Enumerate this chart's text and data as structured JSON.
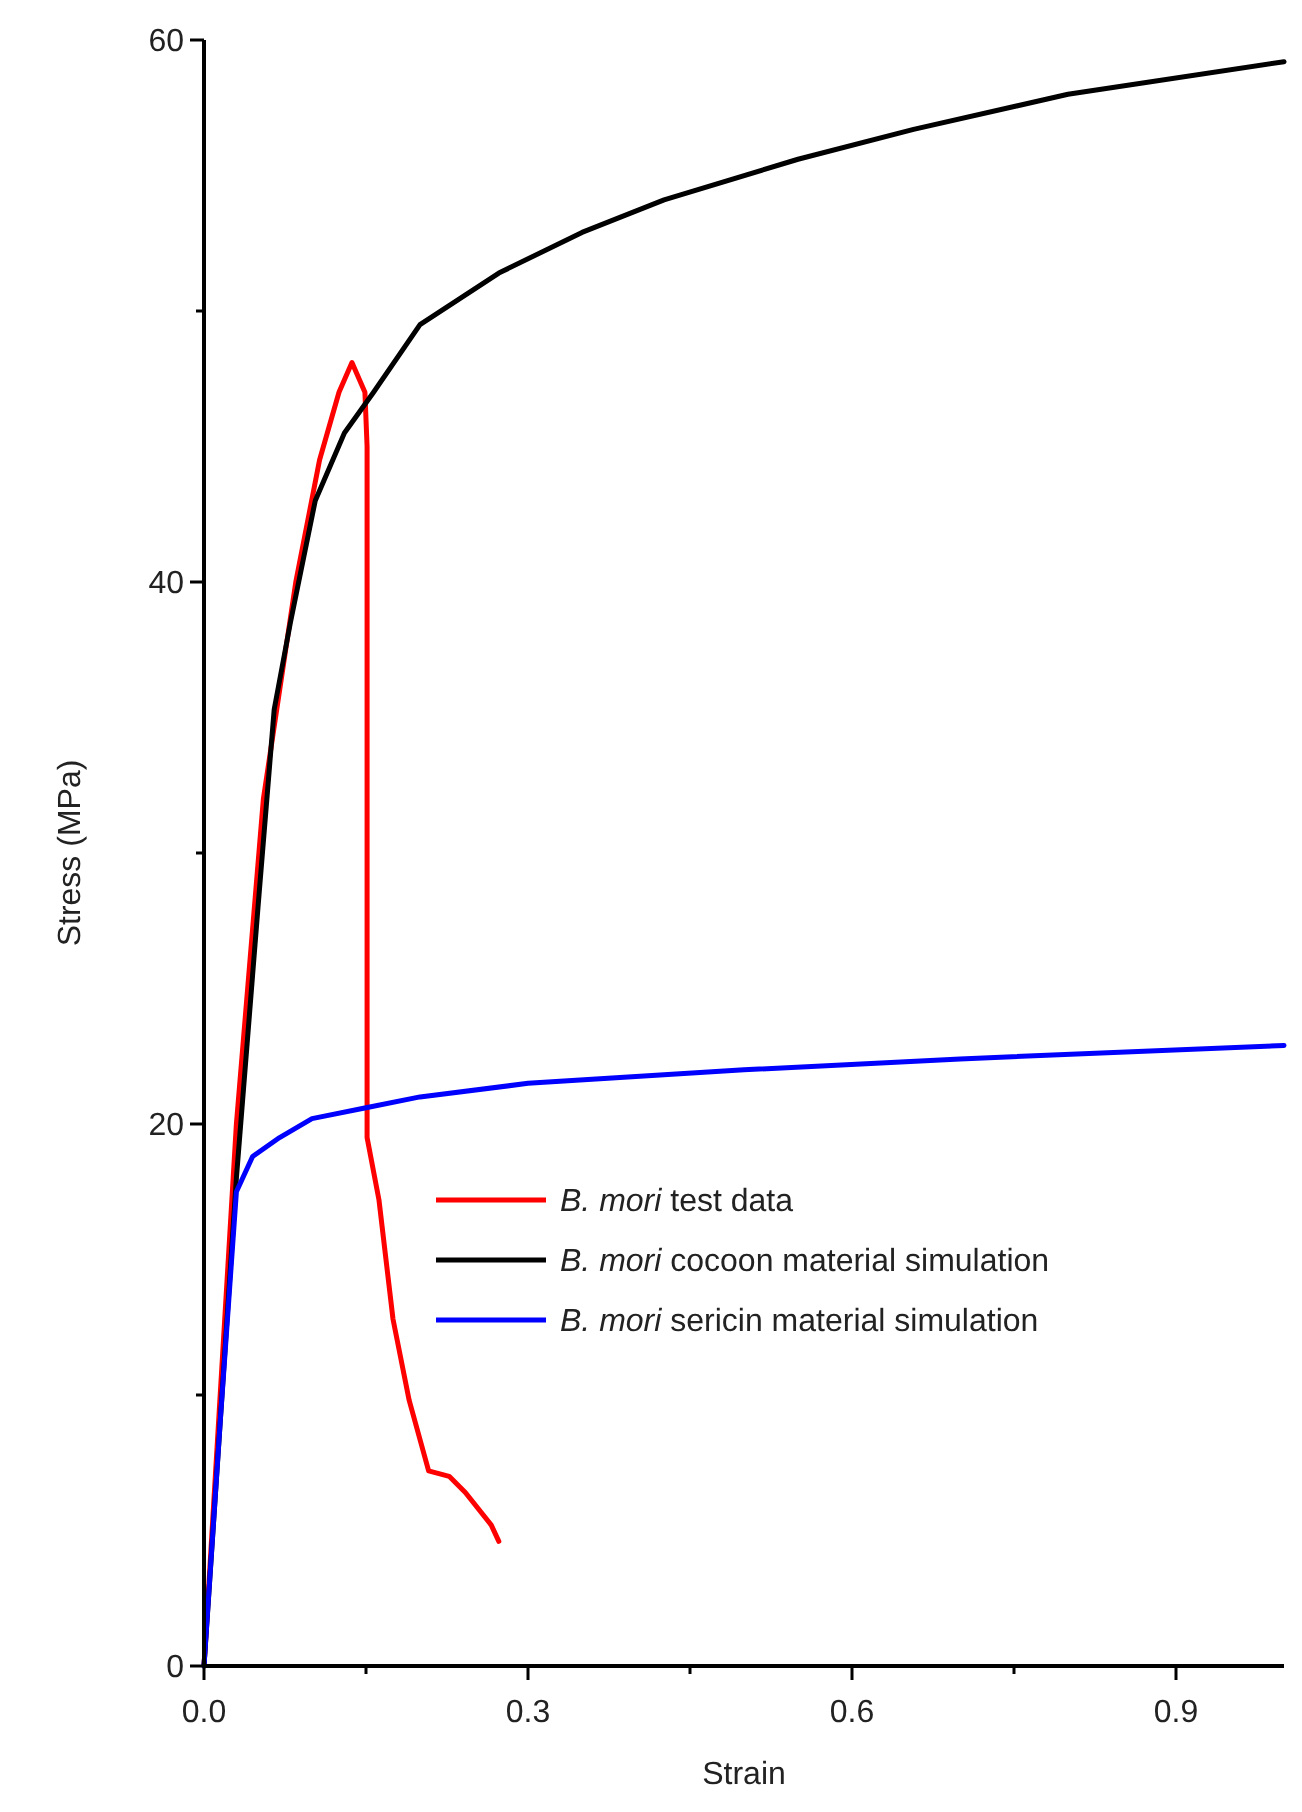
{
  "chart_data": {
    "type": "line",
    "xlabel": "Strain",
    "ylabel": "Stress (MPa)",
    "xlim": [
      0,
      1
    ],
    "ylim": [
      0,
      60
    ],
    "xticks": [
      {
        "value": 0,
        "label": "0.0"
      },
      {
        "value": 0.15,
        "label": null
      },
      {
        "value": 0.3,
        "label": "0.3"
      },
      {
        "value": 0.45,
        "label": null
      },
      {
        "value": 0.6,
        "label": "0.6"
      },
      {
        "value": 0.75,
        "label": null
      },
      {
        "value": 0.9,
        "label": "0.9"
      }
    ],
    "yticks": [
      0,
      {
        "value": 10,
        "label": null
      },
      20,
      {
        "value": 30,
        "label": null
      },
      40,
      {
        "value": 50,
        "label": null
      },
      60
    ],
    "legend": "right",
    "grid": false,
    "marker": "none",
    "line_style": "solid",
    "series": [
      {
        "name": "B. mori test data",
        "color": "#ff0000",
        "x": [
          0,
          0.03,
          0.055,
          0.085,
          0.107,
          0.125,
          0.137,
          0.149,
          0.151,
          0.151,
          0.162,
          0.175,
          0.19,
          0.208,
          0.227,
          0.242,
          0.266,
          0.273
        ],
        "values": [
          0,
          20,
          32,
          40,
          44.5,
          47,
          48.1,
          47,
          45,
          19.5,
          17.2,
          12.8,
          9.8,
          7.2,
          7.0,
          6.4,
          5.2,
          4.6
        ]
      },
      {
        "name": "B. mori cocoon material simulation",
        "color": "#000000",
        "x": [
          0,
          0.015,
          0.03,
          0.05,
          0.065,
          0.08,
          0.103,
          0.13,
          0.157,
          0.2,
          0.273,
          0.35,
          0.426,
          0.55,
          0.657,
          0.8,
          1.0
        ],
        "values": [
          0,
          9,
          18,
          28,
          35.3,
          38.5,
          43,
          45.5,
          47,
          49.5,
          51.4,
          52.9,
          54.1,
          55.6,
          56.7,
          58,
          59.2
        ]
      },
      {
        "name": "B. mori sericin material simulation",
        "color": "#0000ff",
        "x": [
          0,
          0.015,
          0.03,
          0.045,
          0.07,
          0.1,
          0.15,
          0.2,
          0.3,
          0.5,
          0.7,
          1.0
        ],
        "values": [
          0,
          9,
          17.5,
          18.8,
          19.5,
          20.2,
          20.6,
          21.0,
          21.5,
          22.0,
          22.4,
          22.9
        ]
      }
    ]
  }
}
